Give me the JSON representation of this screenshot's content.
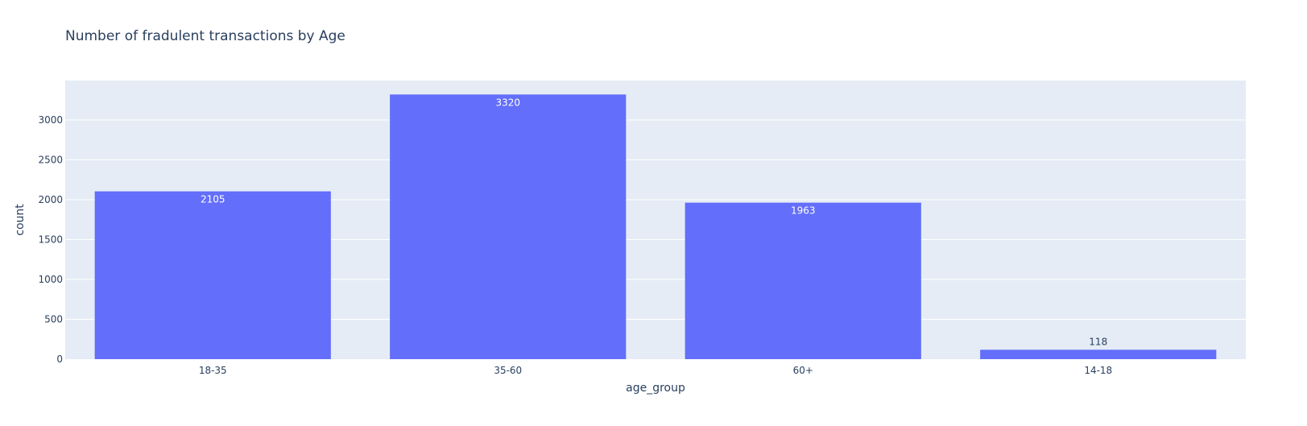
{
  "chart_data": {
    "type": "bar",
    "title": "Number of fradulent transactions by Age",
    "xlabel": "age_group",
    "ylabel": "count",
    "categories": [
      "18-35",
      "35-60",
      "60+",
      "14-18"
    ],
    "values": [
      2105,
      3320,
      1963,
      118
    ],
    "value_labels": [
      "2105",
      "3320",
      "1963",
      "118"
    ],
    "ylim": [
      0,
      3495
    ],
    "yticks": [
      0,
      500,
      1000,
      1500,
      2000,
      2500,
      3000
    ],
    "ytick_labels": [
      "0",
      "500",
      "1000",
      "1500",
      "2000",
      "2500",
      "3000"
    ],
    "grid": true,
    "legend": false,
    "colors": {
      "bar": "#636efa",
      "plot_background": "#e5ecf6",
      "gridline": "#ffffff",
      "text": "#2a3f5f",
      "label_inside": "#ffffff",
      "label_outside": "#2a3f5f"
    }
  }
}
